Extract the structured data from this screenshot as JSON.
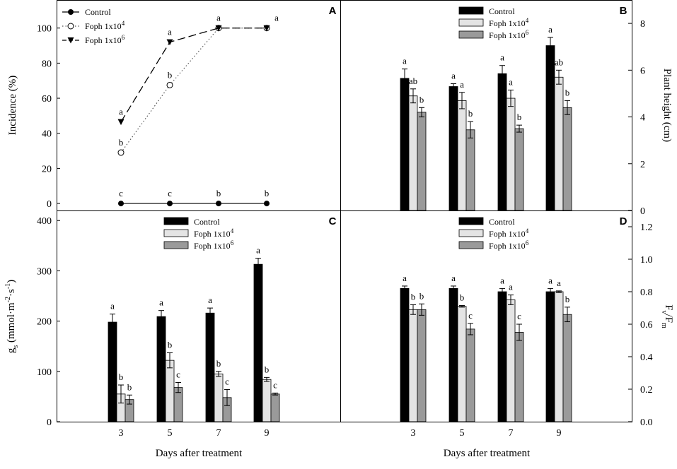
{
  "figure": {
    "x_axis_label_left": "Days after treatment",
    "x_axis_label_right": "Days after treatment"
  },
  "chart_data": [
    {
      "id": "A",
      "panel_label": "A",
      "type": "line",
      "x": [
        3,
        5,
        7,
        9
      ],
      "xlabel": "",
      "ylabel": "Incidence (%)",
      "ylim": [
        -4,
        116
      ],
      "yticks": [
        0,
        20,
        40,
        60,
        80,
        100
      ],
      "legend_position": "top-left",
      "series": [
        {
          "name": "Control",
          "legend_label": "Control",
          "legend_sup": "",
          "marker": "circle-filled",
          "line": "solid",
          "values": [
            0,
            0,
            0,
            0
          ],
          "labels": [
            "c",
            "c",
            "b",
            "b"
          ]
        },
        {
          "name": "Foph 1x10^4",
          "legend_label": "Foph 1x10",
          "legend_sup": "4",
          "marker": "circle-open",
          "line": "dotted",
          "values": [
            29,
            67.5,
            100,
            100
          ],
          "labels": [
            "b",
            "b",
            "",
            ""
          ]
        },
        {
          "name": "Foph 1x10^6",
          "legend_label": "Foph 1x10",
          "legend_sup": "6",
          "marker": "triangle-down",
          "line": "dashed",
          "values": [
            46.5,
            92,
            100,
            100
          ],
          "labels": [
            "a",
            "a",
            "a",
            "a"
          ]
        }
      ]
    },
    {
      "id": "B",
      "panel_label": "B",
      "type": "bar",
      "categories": [
        3,
        5,
        7,
        9
      ],
      "xlabel": "",
      "ylabel": "Plant height (cm)",
      "ylim": [
        0,
        9
      ],
      "yticks": [
        0,
        2,
        4,
        6,
        8
      ],
      "legend_position": "top-center",
      "series": [
        {
          "name": "Control",
          "legend_label": "Control",
          "legend_sup": "",
          "color": "#000000",
          "values": [
            5.65,
            5.3,
            5.85,
            7.05
          ],
          "errors": [
            0.4,
            0.12,
            0.35,
            0.35
          ],
          "labels": [
            "a",
            "a",
            "a",
            "a"
          ]
        },
        {
          "name": "Foph 1x10^4",
          "legend_label": "Foph 1x10",
          "legend_sup": "4",
          "color": "#e4e4e4",
          "values": [
            4.9,
            4.7,
            4.8,
            5.7
          ],
          "errors": [
            0.3,
            0.35,
            0.35,
            0.3
          ],
          "labels": [
            "ab",
            "a",
            "a",
            "ab"
          ]
        },
        {
          "name": "Foph 1x10^6",
          "legend_label": "Foph 1x10",
          "legend_sup": "6",
          "color": "#9a9a9a",
          "values": [
            4.2,
            3.45,
            3.5,
            4.4
          ],
          "errors": [
            0.2,
            0.35,
            0.15,
            0.3
          ],
          "labels": [
            "b",
            "b",
            "b",
            "b"
          ]
        }
      ]
    },
    {
      "id": "C",
      "panel_label": "C",
      "type": "bar",
      "categories": [
        3,
        5,
        7,
        9
      ],
      "xlabel": "Days after treatment",
      "ylabel_main": "g",
      "ylabel_sub": "s",
      "ylabel_units": "(mmol·m",
      "ylabel_exp1": "-2",
      "ylabel_mid": "·s",
      "ylabel_exp2": "-1",
      "ylabel_close": ")",
      "ylim": [
        0,
        420
      ],
      "yticks": [
        0,
        100,
        200,
        300,
        400
      ],
      "legend_position": "top-center",
      "series": [
        {
          "name": "Control",
          "legend_label": "Control",
          "legend_sup": "",
          "color": "#000000",
          "values": [
            198,
            209,
            216,
            313
          ],
          "errors": [
            16,
            12,
            10,
            12
          ],
          "labels": [
            "a",
            "a",
            "a",
            "a"
          ]
        },
        {
          "name": "Foph 1x10^4",
          "legend_label": "Foph 1x10",
          "legend_sup": "4",
          "color": "#e4e4e4",
          "values": [
            55,
            122,
            95,
            84
          ],
          "errors": [
            18,
            15,
            5,
            4
          ],
          "labels": [
            "b",
            "b",
            "b",
            "b"
          ]
        },
        {
          "name": "Foph 1x10^6",
          "legend_label": "Foph 1x10",
          "legend_sup": "6",
          "color": "#9a9a9a",
          "values": [
            44,
            68,
            48,
            55
          ],
          "errors": [
            9,
            10,
            16,
            2
          ],
          "labels": [
            "b",
            "c",
            "c",
            "c"
          ]
        }
      ]
    },
    {
      "id": "D",
      "panel_label": "D",
      "type": "bar",
      "categories": [
        3,
        5,
        7,
        9
      ],
      "xlabel": "Days after treatment",
      "ylabel_main": "F",
      "ylabel_sub1": "v",
      "ylabel_sep": "/F",
      "ylabel_sub2": "m",
      "ylim": [
        0,
        1.3
      ],
      "yticks": [
        "0.0",
        "0.2",
        "0.4",
        "0.6",
        "0.8",
        "1.0",
        "1.2"
      ],
      "legend_position": "top-center",
      "series": [
        {
          "name": "Control",
          "legend_label": "Control",
          "legend_sup": "",
          "color": "#000000",
          "values": [
            0.82,
            0.82,
            0.8,
            0.8
          ],
          "errors": [
            0.015,
            0.015,
            0.02,
            0.02
          ],
          "labels": [
            "a",
            "a",
            "a",
            "a"
          ]
        },
        {
          "name": "Foph 1x10^4",
          "legend_label": "Foph 1x10",
          "legend_sup": "4",
          "color": "#e4e4e4",
          "values": [
            0.69,
            0.71,
            0.75,
            0.8
          ],
          "errors": [
            0.03,
            0.005,
            0.03,
            0.005
          ],
          "labels": [
            "b",
            "b",
            "a",
            "a"
          ]
        },
        {
          "name": "Foph 1x10^6",
          "legend_label": "Foph 1x10",
          "legend_sup": "6",
          "color": "#9a9a9a",
          "values": [
            0.69,
            0.57,
            0.55,
            0.66
          ],
          "errors": [
            0.035,
            0.035,
            0.05,
            0.045
          ],
          "labels": [
            "b",
            "c",
            "c",
            "b"
          ]
        }
      ]
    }
  ]
}
